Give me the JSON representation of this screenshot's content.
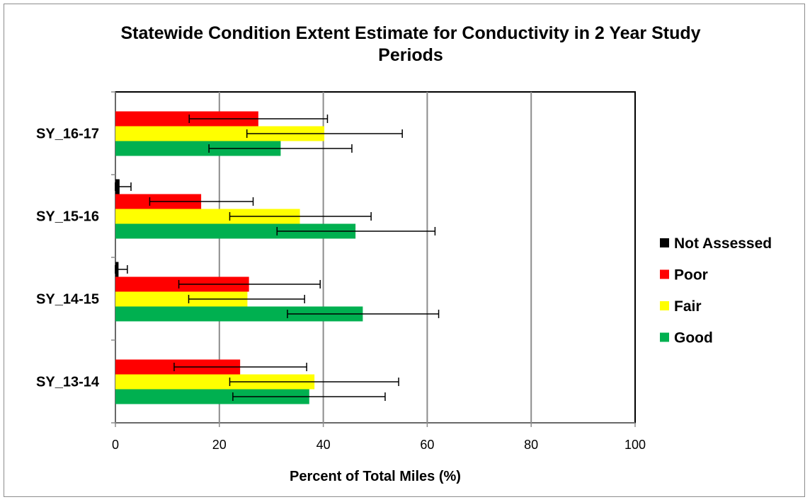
{
  "chart_data": {
    "type": "bar",
    "orientation": "horizontal",
    "title": "Statewide Condition Extent Estimate for Conductivity in 2 Year Study Periods",
    "xlabel": "Percent of Total Miles (%)",
    "ylabel": "",
    "xlim": [
      0,
      100
    ],
    "xticks": [
      0,
      20,
      40,
      60,
      80,
      100
    ],
    "grid": "vertical major gridlines",
    "legend_position": "right",
    "categories": [
      "SY_16-17",
      "SY_15-16",
      "SY_14-15",
      "SY_13-14"
    ],
    "series": [
      {
        "name": "Not Assessed",
        "color": "#000000",
        "values": [
          0,
          0.8,
          0.6,
          0
        ],
        "error_low": [
          null,
          0.0,
          0.0,
          null
        ],
        "error_high": [
          null,
          3.0,
          2.3,
          null
        ]
      },
      {
        "name": "Poor",
        "color": "#ff0000",
        "values": [
          27.5,
          16.5,
          25.7,
          24.0
        ],
        "error_low": [
          14.2,
          6.6,
          12.2,
          11.3
        ],
        "error_high": [
          40.8,
          26.5,
          39.4,
          36.8
        ]
      },
      {
        "name": "Fair",
        "color": "#ffff00",
        "values": [
          40.2,
          35.5,
          25.4,
          38.3
        ],
        "error_low": [
          25.3,
          22.0,
          14.1,
          22.0
        ],
        "error_high": [
          55.2,
          49.2,
          36.4,
          54.5
        ]
      },
      {
        "name": "Good",
        "color": "#00b050",
        "values": [
          31.8,
          46.2,
          47.6,
          37.3
        ],
        "error_low": [
          18.0,
          31.1,
          33.1,
          22.6
        ],
        "error_high": [
          45.5,
          61.5,
          62.2,
          51.9
        ]
      }
    ]
  }
}
